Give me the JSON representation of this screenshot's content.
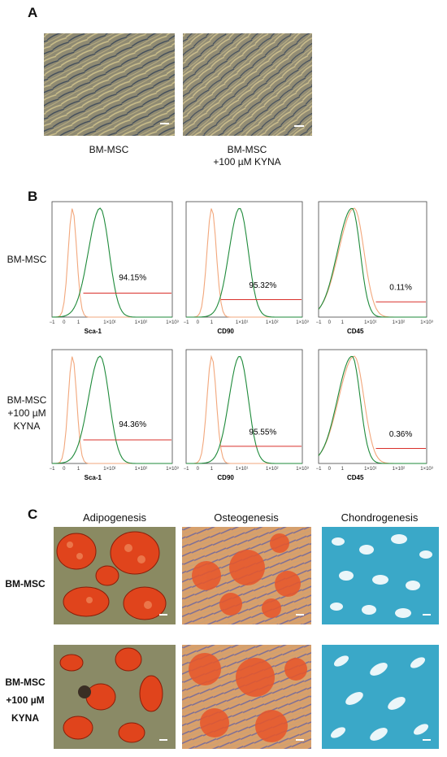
{
  "panels": {
    "a": {
      "letter": "A",
      "captions": [
        "BM-MSC",
        "BM-MSC\n+100 µM KYNA"
      ]
    },
    "b": {
      "letter": "B",
      "row_labels": [
        "BM-MSC",
        "BM-MSC\n+100 µM\nKYNA"
      ],
      "markers": [
        "Sca-1",
        "CD90",
        "CD45"
      ],
      "percentages": [
        [
          "94.15%",
          "95.32%",
          "0.11%"
        ],
        [
          "94.36%",
          "95.55%",
          "0.36%"
        ]
      ],
      "tick_labels": [
        "−1",
        "0",
        "1",
        "1×10¹",
        "1×10²",
        "1×10³"
      ],
      "colors": {
        "isotype": "#f2a77c",
        "stained": "#1e8a3a",
        "gate": "#d9302b"
      }
    },
    "c": {
      "letter": "C",
      "columns": [
        "Adipogenesis",
        "Osteogenesis",
        "Chondrogenesis"
      ],
      "row_labels": [
        "BM-MSC",
        "BM-MSC\n+100 µM\nKYNA"
      ],
      "stain_colors": {
        "adipo": "#e0441c",
        "osteo": "#e86a2a",
        "chondro": "#3aa8c8"
      }
    }
  }
}
